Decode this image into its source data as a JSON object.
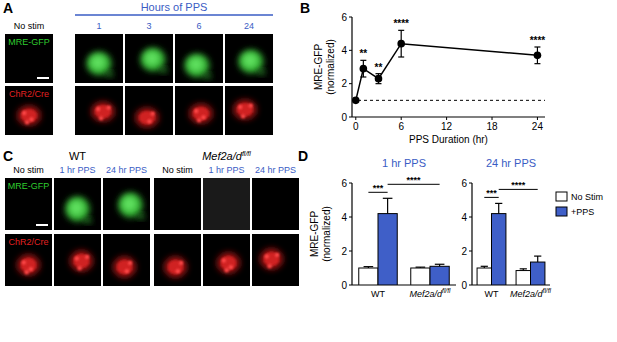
{
  "figure": {
    "panel_labels": [
      "A",
      "B",
      "C",
      "D"
    ],
    "panel_a": {
      "header": "Hours of PPS",
      "columns": [
        "No stim",
        "1",
        "3",
        "6",
        "24"
      ],
      "rows": [
        "MRE-GFP",
        "ChR2/Cre"
      ]
    },
    "panel_c": {
      "groups": [
        {
          "name": "WT",
          "columns": [
            "No stim",
            "1 hr PPS",
            "24 hr PPS"
          ]
        },
        {
          "name": "Mef2a/d",
          "superscript": "fl/fl",
          "columns": [
            "No stim",
            "1 hr PPS",
            "24 hr PPS"
          ]
        }
      ],
      "rows": [
        "MRE-GFP",
        "ChR2/Cre"
      ]
    }
  },
  "chart_data": [
    {
      "type": "line",
      "ylabel": [
        "MRE-GFP",
        "(normalized)"
      ],
      "xlabel": "PPS Duration (hr)",
      "x": [
        0,
        1,
        3,
        6,
        24
      ],
      "values": [
        1,
        2.9,
        2.3,
        4.4,
        3.7
      ],
      "errors": [
        0.05,
        0.5,
        0.3,
        0.8,
        0.5
      ],
      "significance": [
        null,
        "**",
        "**",
        "****",
        "****"
      ],
      "reference_line": 1,
      "color": "#000000",
      "marker": "circle",
      "line_style": "solid",
      "xlim": [
        -0.5,
        25
      ],
      "xticks": [
        0,
        6,
        12,
        18,
        24
      ],
      "ylim": [
        0,
        6
      ],
      "yticks": [
        0,
        2,
        4,
        6
      ]
    },
    {
      "type": "bar",
      "title": "1 hr PPS",
      "ylabel": [
        "MRE-GFP",
        "(normalized)"
      ],
      "categories": [
        "WT",
        "Mef2a/d"
      ],
      "category_superscripts": [
        null,
        "fl/fl"
      ],
      "series": [
        {
          "name": "No Stim",
          "color": "#ffffff",
          "values": [
            1,
            1
          ],
          "errors": [
            0.08,
            0.05
          ]
        },
        {
          "name": "+PPS",
          "color": "#3f5fc8",
          "values": [
            4.2,
            1.1
          ],
          "errors": [
            0.9,
            0.12
          ]
        }
      ],
      "comparisons": [
        {
          "label": "***",
          "from": [
            0,
            0
          ],
          "to": [
            0,
            1
          ]
        },
        {
          "label": "****",
          "from": [
            0,
            1
          ],
          "to": [
            1,
            1
          ]
        }
      ],
      "ylim": [
        0,
        6
      ],
      "yticks": [
        0,
        2,
        4,
        6
      ]
    },
    {
      "type": "bar",
      "title": "24 hr PPS",
      "categories": [
        "WT",
        "Mef2a/d"
      ],
      "category_superscripts": [
        null,
        "fl/fl"
      ],
      "series": [
        {
          "name": "No Stim",
          "color": "#ffffff",
          "values": [
            1,
            0.85
          ],
          "errors": [
            0.1,
            0.1
          ]
        },
        {
          "name": "+PPS",
          "color": "#3f5fc8",
          "values": [
            4.2,
            1.35
          ],
          "errors": [
            0.6,
            0.35
          ]
        }
      ],
      "comparisons": [
        {
          "label": "***",
          "from": [
            0,
            0
          ],
          "to": [
            0,
            1
          ]
        },
        {
          "label": "****",
          "from": [
            0,
            1
          ],
          "to": [
            1,
            1
          ]
        }
      ],
      "ylim": [
        0,
        6
      ],
      "yticks": [
        0,
        2,
        4,
        6
      ],
      "legend": "right"
    }
  ]
}
